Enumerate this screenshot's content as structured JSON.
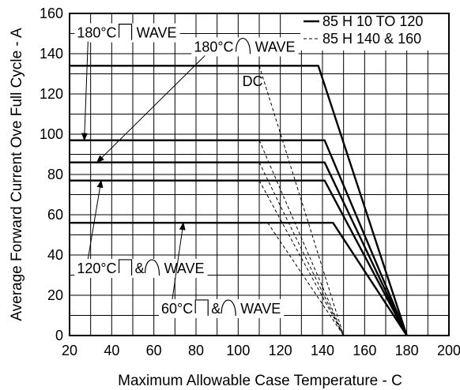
{
  "chart_data": {
    "type": "line",
    "xlabel": "Maximum Allowable Case Temperature - C",
    "ylabel": "Average Forward Current Ove Full Cycle - A",
    "xlim": [
      20,
      200
    ],
    "ylim": [
      0,
      160
    ],
    "x_ticks": [
      20,
      40,
      60,
      80,
      100,
      120,
      140,
      160,
      180,
      200
    ],
    "y_ticks": [
      0,
      20,
      40,
      60,
      80,
      100,
      120,
      140,
      160
    ],
    "x_grid_step": 10,
    "y_grid_step": 10,
    "grid": true,
    "legend_position": "top-right",
    "legend": [
      {
        "label": "85 H 10 TO 120",
        "style": "solid"
      },
      {
        "label": "85 H 140 & 160",
        "style": "dashed"
      }
    ],
    "series": [
      {
        "style": "solid",
        "points": [
          [
            20,
            134
          ],
          [
            138,
            134
          ],
          [
            180,
            0
          ]
        ]
      },
      {
        "style": "solid",
        "points": [
          [
            20,
            97
          ],
          [
            141,
            97
          ],
          [
            180,
            0
          ]
        ]
      },
      {
        "style": "solid",
        "points": [
          [
            20,
            86
          ],
          [
            141,
            86
          ],
          [
            180,
            0
          ]
        ]
      },
      {
        "style": "solid",
        "points": [
          [
            20,
            77
          ],
          [
            141,
            77
          ],
          [
            180,
            0
          ]
        ]
      },
      {
        "style": "solid",
        "points": [
          [
            20,
            56
          ],
          [
            145,
            56
          ],
          [
            180,
            0
          ]
        ]
      },
      {
        "style": "dashed",
        "points": [
          [
            110,
            134
          ],
          [
            150,
            0
          ]
        ]
      },
      {
        "style": "dashed",
        "points": [
          [
            110,
            97
          ],
          [
            150,
            0
          ]
        ]
      },
      {
        "style": "dashed",
        "points": [
          [
            110,
            86
          ],
          [
            150,
            0
          ]
        ]
      },
      {
        "style": "dashed",
        "points": [
          [
            110,
            77
          ],
          [
            150,
            0
          ]
        ]
      },
      {
        "style": "dashed",
        "points": [
          [
            114,
            56
          ],
          [
            150,
            0
          ]
        ]
      }
    ],
    "annotations": [
      {
        "id": "wave-sq-180",
        "prefix": "180°C",
        "symbol": "square",
        "suffix": "WAVE",
        "label_at": [
          23.5,
          148
        ],
        "arrow_to": [
          27,
          97
        ]
      },
      {
        "id": "wave-sine-180",
        "prefix": "180°C",
        "symbol": "sine",
        "suffix": "WAVE",
        "label_at": [
          79,
          141
        ],
        "arrow_to": [
          33,
          86
        ]
      },
      {
        "id": "dc",
        "text": "DC",
        "label_at": [
          102,
          124
        ]
      },
      {
        "id": "wave-both-120",
        "prefix": "120°C",
        "symbol": "square-sine",
        "suffix": "WAVE",
        "label_at": [
          23.5,
          31
        ],
        "arrow_to": [
          35,
          77
        ]
      },
      {
        "id": "wave-both-60",
        "prefix": "60°C",
        "symbol": "square-sine",
        "suffix": "WAVE",
        "label_at": [
          63.5,
          11
        ],
        "arrow_to": [
          74,
          56
        ]
      }
    ]
  }
}
